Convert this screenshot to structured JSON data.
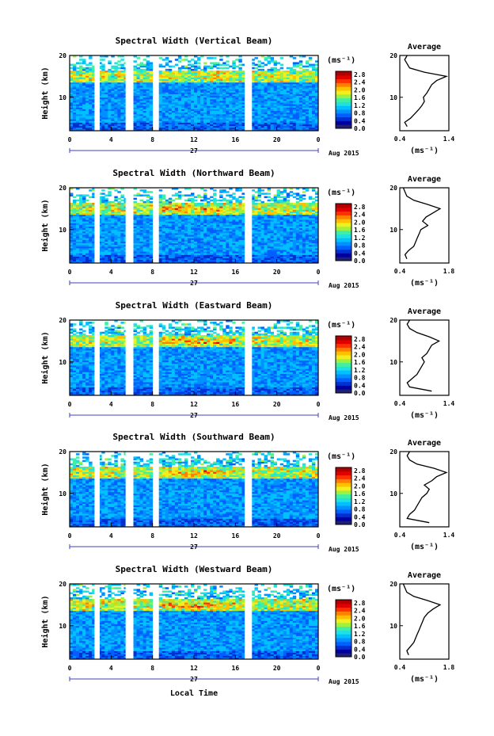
{
  "x_label": "Local Time",
  "date_label": "Aug 2015",
  "day_label": "27",
  "cbar_unit": "(ms⁻¹)",
  "avg_unit": "(ms⁻¹)",
  "avg_title": "Average",
  "y_label": "Height (km)",
  "colorscale": [
    "#202070",
    "#0000a0",
    "#0030d0",
    "#0060ff",
    "#0090ff",
    "#00c0ff",
    "#20e0e0",
    "#40f0a0",
    "#a0f040",
    "#f0f020",
    "#ffc000",
    "#ff8000",
    "#ff3000",
    "#e00000",
    "#b00000"
  ],
  "chart_data": [
    {
      "type": "heatmap",
      "title": "Spectral Width (Vertical Beam)",
      "x_ticks": [
        "0",
        "4",
        "8",
        "12",
        "16",
        "20",
        "0"
      ],
      "y_ticks": [
        "20",
        "10"
      ],
      "xlim": [
        0,
        24
      ],
      "ylim": [
        2,
        20
      ],
      "cbar_ticks": [
        "2.8",
        "2.4",
        "2.0",
        "1.6",
        "1.2",
        "0.8",
        "0.4",
        "0.0"
      ],
      "gaps_hours": [
        [
          2.4,
          2.9
        ],
        [
          5.4,
          6.1
        ],
        [
          8.1,
          8.6
        ],
        [
          16.9,
          17.6
        ]
      ],
      "avg_profile": {
        "x_ticks": [
          "0.4",
          "1.4"
        ],
        "xlim": [
          0.4,
          1.4
        ],
        "y_ticks": [
          "20",
          "10"
        ],
        "heights_km": [
          3,
          4,
          5,
          6,
          7,
          8,
          9,
          10,
          11,
          12,
          13,
          14,
          15,
          16,
          17,
          18,
          19,
          20
        ],
        "values": [
          0.55,
          0.5,
          0.62,
          0.7,
          0.78,
          0.85,
          0.9,
          0.88,
          0.95,
          1.0,
          1.05,
          1.15,
          1.35,
          0.9,
          0.6,
          0.55,
          0.5,
          0.55
        ]
      }
    },
    {
      "type": "heatmap",
      "title": "Spectral Width (Northward Beam)",
      "x_ticks": [
        "0",
        "4",
        "8",
        "12",
        "16",
        "20",
        "0"
      ],
      "y_ticks": [
        "20",
        "10"
      ],
      "xlim": [
        0,
        24
      ],
      "ylim": [
        2,
        20
      ],
      "cbar_ticks": [
        "2.8",
        "2.4",
        "2.0",
        "1.6",
        "1.2",
        "0.8",
        "0.4",
        "0.0"
      ],
      "gaps_hours": [
        [
          2.4,
          2.9
        ],
        [
          5.4,
          6.1
        ],
        [
          8.1,
          8.6
        ],
        [
          16.9,
          17.6
        ]
      ],
      "avg_profile": {
        "x_ticks": [
          "0.4",
          "1.8"
        ],
        "xlim": [
          0.4,
          1.8
        ],
        "y_ticks": [
          "20",
          "10"
        ],
        "heights_km": [
          3,
          4,
          5,
          6,
          7,
          8,
          9,
          10,
          11,
          12,
          13,
          14,
          15,
          16,
          17,
          18,
          19,
          20
        ],
        "values": [
          0.6,
          0.55,
          0.65,
          0.8,
          0.85,
          0.9,
          0.95,
          1.0,
          1.2,
          1.05,
          1.15,
          1.35,
          1.55,
          1.2,
          0.8,
          0.6,
          0.55,
          0.5
        ]
      }
    },
    {
      "type": "heatmap",
      "title": "Spectral Width (Eastward Beam)",
      "x_ticks": [
        "0",
        "4",
        "8",
        "12",
        "16",
        "20",
        "0"
      ],
      "y_ticks": [
        "20",
        "10"
      ],
      "xlim": [
        0,
        24
      ],
      "ylim": [
        2,
        20
      ],
      "cbar_ticks": [
        "2.8",
        "2.4",
        "2.0",
        "1.6",
        "1.2",
        "0.8",
        "0.4",
        "0.0"
      ],
      "gaps_hours": [
        [
          2.4,
          2.9
        ],
        [
          5.4,
          6.1
        ],
        [
          8.1,
          8.6
        ],
        [
          16.9,
          17.6
        ]
      ],
      "avg_profile": {
        "x_ticks": [
          "0.4",
          "1.4"
        ],
        "xlim": [
          0.4,
          1.4
        ],
        "y_ticks": [
          "20",
          "10"
        ],
        "heights_km": [
          3,
          4,
          5,
          6,
          7,
          8,
          9,
          10,
          11,
          12,
          13,
          14,
          15,
          16,
          17,
          18,
          19,
          20
        ],
        "values": [
          1.05,
          0.6,
          0.55,
          0.65,
          0.75,
          0.8,
          0.85,
          0.9,
          0.85,
          0.95,
          1.0,
          1.05,
          1.2,
          1.0,
          0.75,
          0.6,
          0.55,
          0.6
        ]
      }
    },
    {
      "type": "heatmap",
      "title": "Spectral Width (Southward Beam)",
      "x_ticks": [
        "0",
        "4",
        "8",
        "12",
        "16",
        "20",
        "0"
      ],
      "y_ticks": [
        "20",
        "10"
      ],
      "xlim": [
        0,
        24
      ],
      "ylim": [
        2,
        20
      ],
      "cbar_ticks": [
        "2.8",
        "2.4",
        "2.0",
        "1.6",
        "1.2",
        "0.8",
        "0.4",
        "0.0"
      ],
      "gaps_hours": [
        [
          2.4,
          2.9
        ],
        [
          5.4,
          6.1
        ],
        [
          8.1,
          8.6
        ],
        [
          16.9,
          17.6
        ]
      ],
      "avg_profile": {
        "x_ticks": [
          "0.4",
          "1.4"
        ],
        "xlim": [
          0.4,
          1.4
        ],
        "y_ticks": [
          "20",
          "10"
        ],
        "heights_km": [
          3,
          4,
          5,
          6,
          7,
          8,
          9,
          10,
          11,
          12,
          13,
          14,
          15,
          16,
          17,
          18,
          19,
          20
        ],
        "values": [
          1.0,
          0.55,
          0.6,
          0.7,
          0.75,
          0.8,
          0.85,
          0.95,
          1.0,
          0.9,
          1.05,
          1.15,
          1.35,
          1.1,
          0.75,
          0.6,
          0.55,
          0.6
        ]
      }
    },
    {
      "type": "heatmap",
      "title": "Spectral Width (Westward Beam)",
      "x_ticks": [
        "0",
        "4",
        "8",
        "12",
        "16",
        "20",
        "0"
      ],
      "y_ticks": [
        "20",
        "10"
      ],
      "xlim": [
        0,
        24
      ],
      "ylim": [
        2,
        20
      ],
      "cbar_ticks": [
        "2.8",
        "2.4",
        "2.0",
        "1.6",
        "1.2",
        "0.8",
        "0.4",
        "0.0"
      ],
      "gaps_hours": [
        [
          2.4,
          2.9
        ],
        [
          5.4,
          6.1
        ],
        [
          8.1,
          8.6
        ],
        [
          16.9,
          17.6
        ]
      ],
      "avg_profile": {
        "x_ticks": [
          "0.4",
          "1.8"
        ],
        "xlim": [
          0.4,
          1.8
        ],
        "y_ticks": [
          "20",
          "10"
        ],
        "heights_km": [
          3,
          4,
          5,
          6,
          7,
          8,
          9,
          10,
          11,
          12,
          13,
          14,
          15,
          16,
          17,
          18,
          19,
          20
        ],
        "values": [
          0.65,
          0.6,
          0.7,
          0.8,
          0.85,
          0.9,
          0.95,
          1.0,
          1.05,
          1.1,
          1.2,
          1.35,
          1.55,
          1.2,
          0.8,
          0.6,
          0.55,
          0.5
        ]
      }
    }
  ]
}
